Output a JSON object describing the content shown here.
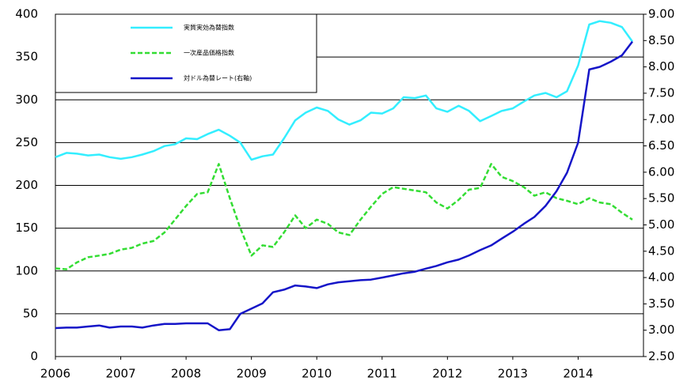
{
  "chart_data": {
    "type": "line",
    "x": [
      2006.0,
      2006.17,
      2006.33,
      2006.5,
      2006.67,
      2006.83,
      2007.0,
      2007.17,
      2007.33,
      2007.5,
      2007.67,
      2007.83,
      2008.0,
      2008.17,
      2008.33,
      2008.5,
      2008.67,
      2008.83,
      2009.0,
      2009.17,
      2009.33,
      2009.5,
      2009.67,
      2009.83,
      2010.0,
      2010.17,
      2010.33,
      2010.5,
      2010.67,
      2010.83,
      2011.0,
      2011.17,
      2011.33,
      2011.5,
      2011.67,
      2011.83,
      2012.0,
      2012.17,
      2012.33,
      2012.5,
      2012.67,
      2012.83,
      2013.0,
      2013.17,
      2013.33,
      2013.5,
      2013.67,
      2013.83,
      2014.0,
      2014.17,
      2014.33,
      2014.5,
      2014.67,
      2014.83
    ],
    "series": [
      {
        "name": "実質実効為替指数",
        "color": "#33eeff",
        "style": "solid",
        "values": [
          233,
          238,
          237,
          235,
          236,
          233,
          231,
          233,
          236,
          240,
          246,
          248,
          255,
          254,
          260,
          265,
          258,
          250,
          230,
          234,
          236,
          255,
          276,
          285,
          291,
          287,
          277,
          271,
          276,
          285,
          284,
          290,
          303,
          302,
          305,
          290,
          286,
          293,
          287,
          275,
          281,
          287,
          290,
          298,
          305,
          308,
          303,
          310,
          340,
          388,
          392,
          390,
          385,
          368
        ]
      },
      {
        "name": "一次産品価格指数",
        "color": "#33dd33",
        "style": "dashed",
        "values": [
          103,
          102,
          110,
          116,
          118,
          120,
          125,
          127,
          132,
          135,
          145,
          160,
          176,
          190,
          192,
          225,
          185,
          150,
          118,
          130,
          128,
          145,
          165,
          150,
          160,
          155,
          145,
          142,
          160,
          175,
          190,
          198,
          196,
          194,
          192,
          180,
          173,
          183,
          195,
          197,
          225,
          210,
          205,
          198,
          188,
          192,
          185,
          182,
          178,
          185,
          180,
          178,
          168,
          160
        ]
      },
      {
        "name": "対ドル為替レート(右軸)",
        "color": "#1515c8",
        "style": "solid",
        "axis": "y2",
        "values": [
          3.04,
          3.05,
          3.05,
          3.07,
          3.09,
          3.05,
          3.07,
          3.07,
          3.05,
          3.09,
          3.12,
          3.12,
          3.13,
          3.13,
          3.13,
          3.0,
          3.02,
          3.31,
          3.41,
          3.51,
          3.72,
          3.77,
          3.85,
          3.83,
          3.8,
          3.87,
          3.91,
          3.93,
          3.95,
          3.96,
          4.0,
          4.04,
          4.08,
          4.11,
          4.17,
          4.22,
          4.29,
          4.34,
          4.42,
          4.52,
          4.61,
          4.74,
          4.87,
          5.02,
          5.15,
          5.36,
          5.64,
          5.99,
          6.56,
          7.95,
          8.0,
          8.1,
          8.22,
          8.48
        ]
      }
    ],
    "xlim": [
      2006,
      2015
    ],
    "xticks": [
      2006,
      2007,
      2008,
      2009,
      2010,
      2011,
      2012,
      2013,
      2014
    ],
    "ylim": [
      0,
      400
    ],
    "yticks": [
      0,
      50,
      100,
      150,
      200,
      250,
      300,
      350,
      400
    ],
    "y2lim": [
      2.5,
      9
    ],
    "y2ticks": [
      {
        "value": 2.5,
        "label": "2.50"
      },
      {
        "value": 3,
        "label": "3.00"
      },
      {
        "value": 3.5,
        "label": "3.50"
      },
      {
        "value": 4,
        "label": "4.00"
      },
      {
        "value": 4.5,
        "label": "4.50"
      },
      {
        "value": 5,
        "label": "5.00"
      },
      {
        "value": 5.5,
        "label": "5.50"
      },
      {
        "value": 6,
        "label": "6.00"
      },
      {
        "value": 6.5,
        "label": "6.50"
      },
      {
        "value": 7,
        "label": "7.00"
      },
      {
        "value": 7.5,
        "label": "7.50"
      },
      {
        "value": 8,
        "label": "8.00"
      },
      {
        "value": 8.5,
        "label": "8.50"
      },
      {
        "value": 9,
        "label": "9.00"
      }
    ],
    "grid": true,
    "legend": "top-left"
  }
}
